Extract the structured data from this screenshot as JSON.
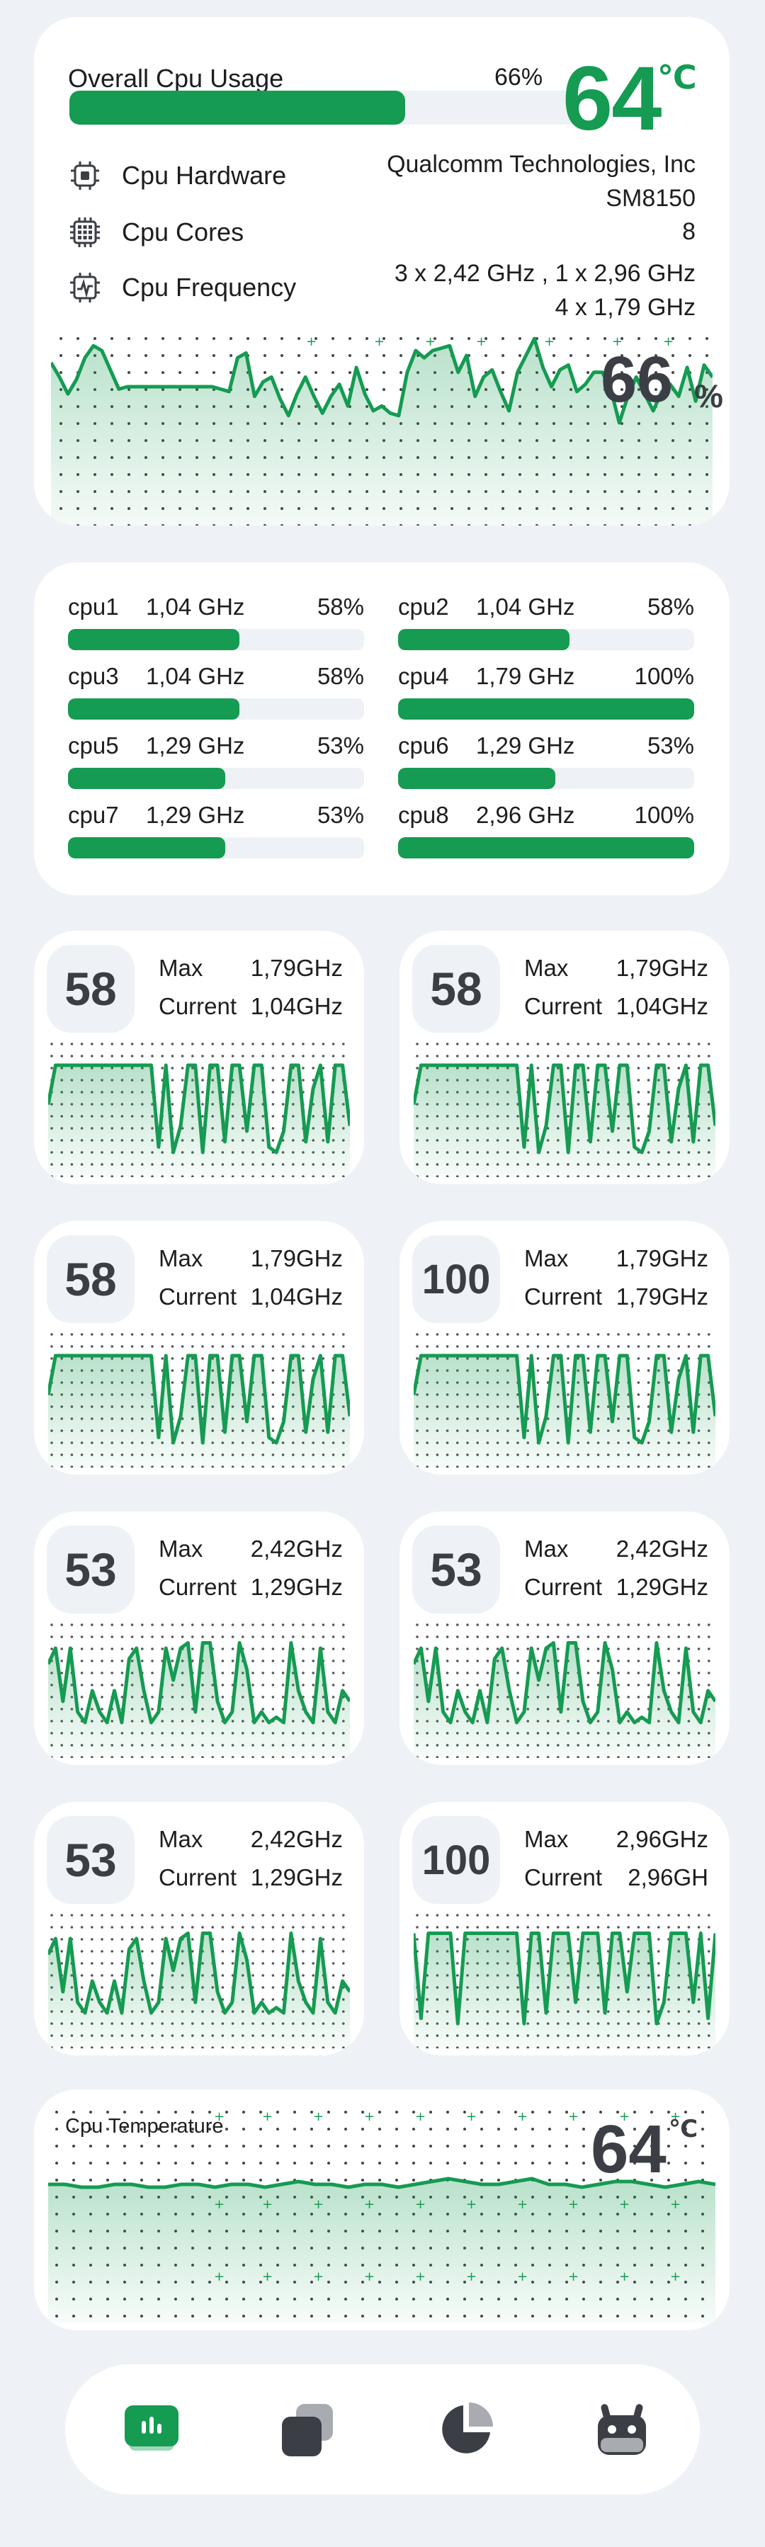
{
  "overview": {
    "title": "Overall Cpu Usage",
    "usage_pct": "66%",
    "usage_value": 66,
    "temp": "64",
    "temp_unit": "℃",
    "hardware_label": "Cpu Hardware",
    "hardware_value_line1": "Qualcomm Technologies, Inc",
    "hardware_value_line2": "SM8150",
    "cores_label": "Cpu Cores",
    "cores_value": "8",
    "freq_label": "Cpu Frequency",
    "freq_value_line1": "3 x 2,42 GHz , 1 x 2,96 GHz",
    "freq_value_line2": "4 x 1,79 GHz",
    "chart_pct": "66",
    "chart_pct_unit": "%",
    "history": [
      40,
      34,
      27,
      33,
      42,
      47,
      45,
      37,
      29,
      30,
      30,
      30,
      30,
      30,
      30,
      30,
      30,
      30,
      30,
      30,
      29,
      28,
      42,
      44,
      26,
      32,
      34,
      25,
      18,
      27,
      34,
      26,
      19,
      26,
      31,
      22,
      38,
      27,
      20,
      22,
      19,
      18,
      36,
      45,
      42,
      45,
      46,
      47,
      36,
      43,
      26,
      34,
      37,
      28,
      20,
      36,
      43,
      50,
      38,
      30,
      37,
      39,
      28,
      31,
      36,
      36,
      29,
      15,
      26,
      34,
      27,
      20,
      28,
      31,
      26,
      38,
      24,
      39,
      34
    ]
  },
  "cores": [
    {
      "name": "cpu1",
      "freq": "1,04 GHz",
      "pct": "58%",
      "value": 58
    },
    {
      "name": "cpu2",
      "freq": "1,04 GHz",
      "pct": "58%",
      "value": 58
    },
    {
      "name": "cpu3",
      "freq": "1,04 GHz",
      "pct": "58%",
      "value": 58
    },
    {
      "name": "cpu4",
      "freq": "1,79 GHz",
      "pct": "100%",
      "value": 100
    },
    {
      "name": "cpu5",
      "freq": "1,29 GHz",
      "pct": "53%",
      "value": 53
    },
    {
      "name": "cpu6",
      "freq": "1,29 GHz",
      "pct": "53%",
      "value": 53
    },
    {
      "name": "cpu7",
      "freq": "1,29 GHz",
      "pct": "53%",
      "value": 53
    },
    {
      "name": "cpu8",
      "freq": "2,96 GHz",
      "pct": "100%",
      "value": 100
    }
  ],
  "core_details": [
    {
      "load": "58",
      "max_label": "Max",
      "max": "1,79GHz",
      "cur_label": "Current",
      "cur": "1,04GHz",
      "series": "A"
    },
    {
      "load": "58",
      "max_label": "Max",
      "max": "1,79GHz",
      "cur_label": "Current",
      "cur": "1,04GHz",
      "series": "A"
    },
    {
      "load": "58",
      "max_label": "Max",
      "max": "1,79GHz",
      "cur_label": "Current",
      "cur": "1,04GHz",
      "series": "A"
    },
    {
      "load": "100",
      "max_label": "Max",
      "max": "1,79GHz",
      "cur_label": "Current",
      "cur": "1,79GHz",
      "series": "A"
    },
    {
      "load": "53",
      "max_label": "Max",
      "max": "2,42GHz",
      "cur_label": "Current",
      "cur": "1,29GHz",
      "series": "B"
    },
    {
      "load": "53",
      "max_label": "Max",
      "max": "2,42GHz",
      "cur_label": "Current",
      "cur": "1,29GHz",
      "series": "B"
    },
    {
      "load": "53",
      "max_label": "Max",
      "max": "2,42GHz",
      "cur_label": "Current",
      "cur": "1,29GHz",
      "series": "B"
    },
    {
      "load": "100",
      "max_label": "Max",
      "max": "2,96GHz",
      "cur_label": "Current",
      "cur": "2,96GH",
      "series": "C"
    }
  ],
  "series_patterns": {
    "A": [
      0.55,
      0.92,
      0.92,
      0.92,
      0.92,
      0.92,
      0.92,
      0.92,
      0.92,
      0.92,
      0.92,
      0.92,
      0.92,
      0.92,
      0.92,
      0.15,
      0.92,
      0.1,
      0.35,
      0.92,
      0.92,
      0.1,
      0.92,
      0.92,
      0.2,
      0.92,
      0.92,
      0.3,
      0.92,
      0.92,
      0.15,
      0.1,
      0.3,
      0.92,
      0.92,
      0.2,
      0.7,
      0.92,
      0.2,
      0.92,
      0.92,
      0.35
    ],
    "B": [
      0.75,
      0.9,
      0.4,
      0.9,
      0.3,
      0.2,
      0.5,
      0.3,
      0.2,
      0.5,
      0.2,
      0.8,
      0.9,
      0.5,
      0.2,
      0.3,
      0.9,
      0.6,
      0.9,
      0.95,
      0.3,
      0.95,
      0.95,
      0.4,
      0.2,
      0.3,
      0.95,
      0.7,
      0.2,
      0.3,
      0.2,
      0.25,
      0.2,
      0.95,
      0.5,
      0.3,
      0.2,
      0.9,
      0.3,
      0.2,
      0.5,
      0.4
    ],
    "C": [
      0.95,
      0.15,
      0.95,
      0.95,
      0.95,
      0.95,
      0.1,
      0.95,
      0.95,
      0.95,
      0.95,
      0.95,
      0.95,
      0.95,
      0.95,
      0.1,
      0.95,
      0.95,
      0.2,
      0.95,
      0.95,
      0.95,
      0.3,
      0.95,
      0.95,
      0.95,
      0.2,
      0.95,
      0.95,
      0.4,
      0.95,
      0.95,
      0.95,
      0.1,
      0.3,
      0.95,
      0.95,
      0.95,
      0.3,
      0.95,
      0.15,
      0.95
    ]
  },
  "temperature": {
    "label": "Cpu Temperature",
    "value": "64",
    "unit": "℃",
    "history": [
      64,
      64,
      63,
      63,
      64,
      64,
      63,
      63,
      64,
      64,
      63,
      64,
      64,
      63,
      64,
      65,
      64,
      64,
      63,
      64,
      64,
      63,
      64,
      65,
      66,
      65,
      64,
      64,
      65,
      66,
      64,
      64,
      63,
      64,
      65,
      65,
      64,
      63,
      64,
      65,
      64
    ]
  },
  "nav": {
    "items": [
      {
        "name": "dashboard",
        "active": true
      },
      {
        "name": "apps",
        "active": false
      },
      {
        "name": "storage",
        "active": false
      },
      {
        "name": "android",
        "active": false
      }
    ]
  },
  "colors": {
    "accent": "#159b52",
    "accent_fill": "#d8f0e2",
    "background": "#eef1f6",
    "card": "#ffffff",
    "text_dark": "#3b3f45"
  }
}
